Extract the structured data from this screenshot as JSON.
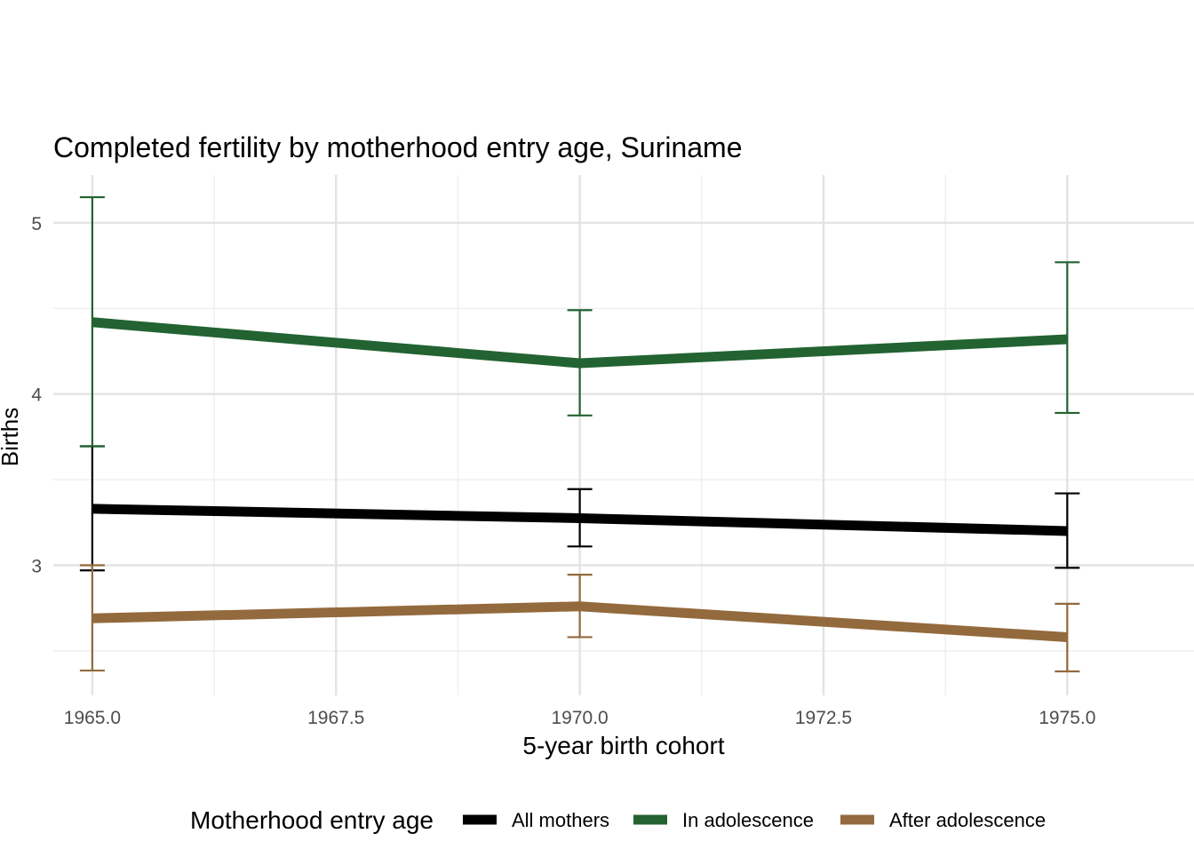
{
  "chart_data": {
    "type": "line",
    "title": "Completed fertility by motherhood entry age,  Suriname",
    "xlabel": "5-year birth cohort",
    "ylabel": "Births",
    "x": [
      1965,
      1970,
      1975
    ],
    "x_ticks": [
      1965,
      1967.5,
      1970,
      1972.5,
      1975
    ],
    "x_tick_labels": [
      "1965.0",
      "1967.5",
      "1970.0",
      "1972.5",
      "1975.0"
    ],
    "y_ticks": [
      3,
      4,
      5
    ],
    "y_tick_labels": [
      "3",
      "4",
      "5"
    ],
    "xlim": [
      1964.6,
      1976.3
    ],
    "ylim": [
      2.24,
      5.28
    ],
    "grid": true,
    "legend": {
      "title": "Motherhood entry age",
      "position": "bottom"
    },
    "series": [
      {
        "name": "All mothers",
        "color": "#000000",
        "values": [
          3.33,
          3.275,
          3.2
        ],
        "lower": [
          2.97,
          3.11,
          2.985
        ],
        "upper": [
          3.695,
          3.445,
          3.42
        ]
      },
      {
        "name": "In adolescence",
        "color": "#236331",
        "values": [
          4.42,
          4.18,
          4.32
        ],
        "lower": [
          3.695,
          3.875,
          3.89
        ],
        "upper": [
          5.15,
          4.49,
          4.77
        ]
      },
      {
        "name": "After adolescence",
        "color": "#936a3d",
        "values": [
          2.69,
          2.76,
          2.58
        ],
        "lower": [
          2.385,
          2.58,
          2.38
        ],
        "upper": [
          3.0,
          2.945,
          2.775
        ]
      }
    ]
  }
}
